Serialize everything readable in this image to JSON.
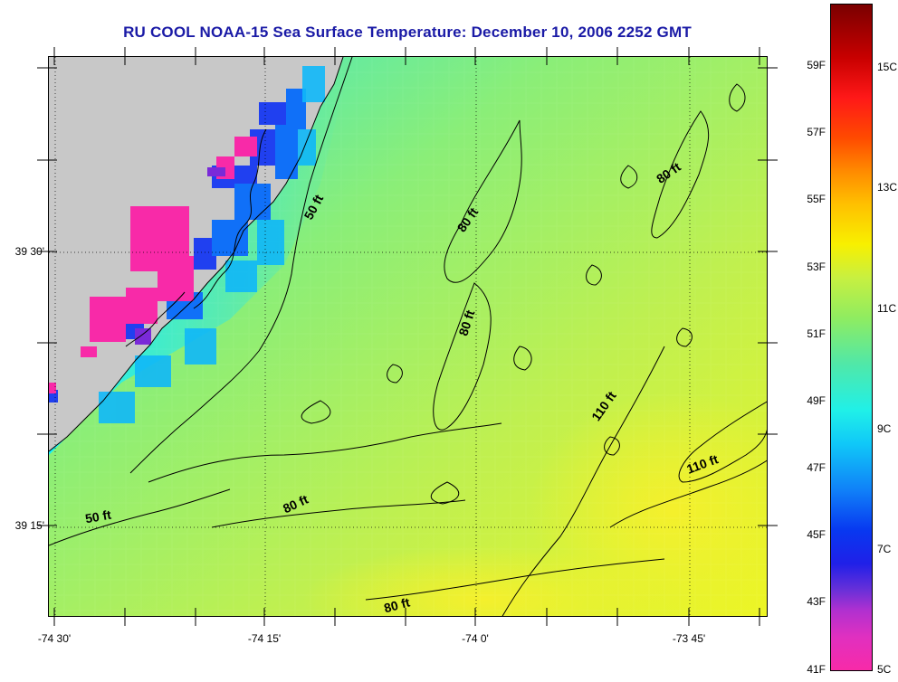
{
  "title": "RU COOL  NOAA-15  Sea Surface Temperature:  December 10, 2006 2252 GMT",
  "colors": {
    "title": "#1a1aa6",
    "land": "#c8c8c8",
    "outline": "#000000"
  },
  "map": {
    "lat_labels": [
      "39 30'",
      "39 15'"
    ],
    "lon_labels": [
      "-74 30'",
      "-74 15'",
      "-74 0'",
      "-73 45'"
    ],
    "contour_labels": [
      "50 ft",
      "80 ft",
      "80 ft",
      "80 ft",
      "110 ft",
      "110 ft",
      "50 ft",
      "80 ft",
      "80 ft"
    ]
  },
  "colorbar": {
    "fahrenheit_labels": [
      "59F",
      "57F",
      "55F",
      "53F",
      "51F",
      "49F",
      "47F",
      "45F",
      "43F",
      "41F"
    ],
    "celsius_labels": [
      "15C",
      "13C",
      "11C",
      "9C",
      "7C",
      "5C"
    ]
  }
}
